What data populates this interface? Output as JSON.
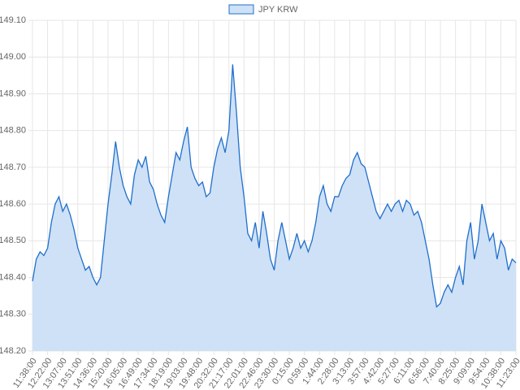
{
  "chart_data": {
    "type": "line",
    "series": [
      {
        "name": "JPY KRW",
        "color": "#1f6fcc",
        "fill": "#cfe1f6",
        "values": [
          148.39,
          148.45,
          148.47,
          148.46,
          148.48,
          148.55,
          148.6,
          148.62,
          148.58,
          148.6,
          148.57,
          148.53,
          148.48,
          148.45,
          148.42,
          148.43,
          148.4,
          148.38,
          148.4,
          148.5,
          148.6,
          148.68,
          148.77,
          148.7,
          148.65,
          148.62,
          148.6,
          148.68,
          148.72,
          148.7,
          148.73,
          148.66,
          148.64,
          148.6,
          148.57,
          148.55,
          148.62,
          148.68,
          148.74,
          148.72,
          148.77,
          148.81,
          148.7,
          148.67,
          148.65,
          148.66,
          148.62,
          148.63,
          148.7,
          148.75,
          148.78,
          148.74,
          148.8,
          148.98,
          148.85,
          148.7,
          148.62,
          148.52,
          148.5,
          148.55,
          148.48,
          148.58,
          148.52,
          148.45,
          148.42,
          148.5,
          148.55,
          148.5,
          148.45,
          148.48,
          148.52,
          148.48,
          148.5,
          148.47,
          148.5,
          148.55,
          148.62,
          148.65,
          148.6,
          148.58,
          148.62,
          148.62,
          148.65,
          148.67,
          148.68,
          148.72,
          148.74,
          148.71,
          148.7,
          148.66,
          148.62,
          148.58,
          148.56,
          148.58,
          148.6,
          148.58,
          148.6,
          148.61,
          148.58,
          148.61,
          148.6,
          148.57,
          148.58,
          148.55,
          148.5,
          148.45,
          148.38,
          148.32,
          148.33,
          148.36,
          148.38,
          148.36,
          148.4,
          148.43,
          148.38,
          148.5,
          148.55,
          148.45,
          148.5,
          148.6,
          148.55,
          148.5,
          148.52,
          148.45,
          148.5,
          148.48,
          148.42,
          148.45,
          148.44
        ]
      }
    ],
    "categories": [
      "11:38:00",
      null,
      null,
      null,
      "12:22:00",
      null,
      null,
      null,
      "13:07:00",
      null,
      null,
      null,
      "13:51:00",
      null,
      null,
      null,
      "14:36:00",
      null,
      null,
      null,
      "15:20:00",
      null,
      null,
      null,
      "16:05:00",
      null,
      null,
      null,
      "16:49:00",
      null,
      null,
      null,
      "17:34:00",
      null,
      null,
      null,
      "18:19:00",
      null,
      null,
      null,
      "19:03:00",
      null,
      null,
      null,
      "19:48:00",
      null,
      null,
      null,
      "20:32:00",
      null,
      null,
      null,
      "21:17:00",
      null,
      null,
      null,
      "22:01:00",
      null,
      null,
      null,
      "22:46:00",
      null,
      null,
      null,
      "23:30:00",
      null,
      null,
      null,
      "0:15:00",
      null,
      null,
      null,
      "0:59:00",
      null,
      null,
      null,
      "1:44:00",
      null,
      null,
      null,
      "2:28:00",
      null,
      null,
      null,
      "3:13:00",
      null,
      null,
      null,
      "3:57:00",
      null,
      null,
      null,
      "4:42:00",
      null,
      null,
      null,
      "5:27:00",
      null,
      null,
      null,
      "6:11:00",
      null,
      null,
      null,
      "6:56:00",
      null,
      null,
      null,
      "7:40:00",
      null,
      null,
      null,
      "8:25:00",
      null,
      null,
      null,
      "9:09:00",
      null,
      null,
      null,
      "9:54:00",
      null,
      null,
      null,
      "10:38:00",
      null,
      null,
      null,
      "11:23:00"
    ],
    "ylim": [
      148.2,
      149.1
    ],
    "yticks": [
      {
        "value": 148.2,
        "label": "148.20"
      },
      {
        "value": 148.3,
        "label": "148.30"
      },
      {
        "value": 148.4,
        "label": "148.40"
      },
      {
        "value": 148.5,
        "label": "148.50"
      },
      {
        "value": 148.6,
        "label": "148.60"
      },
      {
        "value": 148.7,
        "label": "148.70"
      },
      {
        "value": 148.8,
        "label": "148.80"
      },
      {
        "value": 148.9,
        "label": "148.90"
      },
      {
        "value": 149.0,
        "label": "149.00"
      },
      {
        "value": 149.1,
        "label": "149.10"
      }
    ],
    "grid": true,
    "legend": "top"
  }
}
